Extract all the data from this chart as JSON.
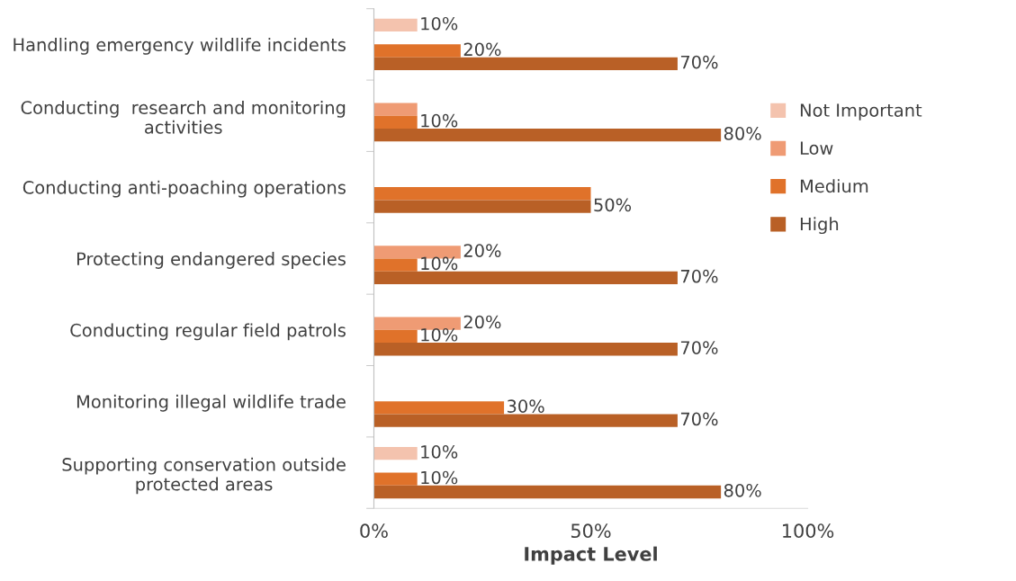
{
  "chart_data": {
    "type": "bar",
    "orientation": "horizontal",
    "xlabel": "Impact Level",
    "categories": [
      "Handling emergency wildlife incidents",
      "Conducting  research and monitoring activities",
      "Conducting anti-poaching operations",
      "Protecting endangered species",
      "Conducting regular field patrols",
      "Monitoring illegal wildlife trade",
      "Supporting conservation outside protected areas"
    ],
    "series": [
      {
        "name": "Not Important",
        "color": "#f4c3ae",
        "values": [
          10,
          null,
          null,
          null,
          null,
          null,
          10
        ],
        "value_labels": [
          "10%",
          null,
          null,
          null,
          null,
          null,
          "10%"
        ]
      },
      {
        "name": "Low",
        "color": "#ef9b74",
        "values": [
          null,
          10,
          null,
          20,
          20,
          null,
          null
        ],
        "value_labels": [
          null,
          null,
          null,
          "20%",
          "20%",
          null,
          null
        ]
      },
      {
        "name": "Medium",
        "color": "#e0722a",
        "values": [
          20,
          10,
          50,
          10,
          10,
          30,
          10
        ],
        "value_labels": [
          "20%",
          "10%",
          null,
          "10%",
          "10%",
          "30%",
          "10%"
        ]
      },
      {
        "name": "High",
        "color": "#b96026",
        "values": [
          70,
          80,
          50,
          70,
          70,
          70,
          80
        ],
        "value_labels": [
          "70%",
          "80%",
          "50%",
          "70%",
          "70%",
          "70%",
          "80%"
        ]
      }
    ],
    "xlim": [
      0,
      100
    ],
    "xticks": [
      {
        "value": 0,
        "label": "0%"
      },
      {
        "value": 50,
        "label": "50%"
      },
      {
        "value": 100,
        "label": "100%"
      }
    ],
    "grid": false,
    "legend": "right"
  }
}
